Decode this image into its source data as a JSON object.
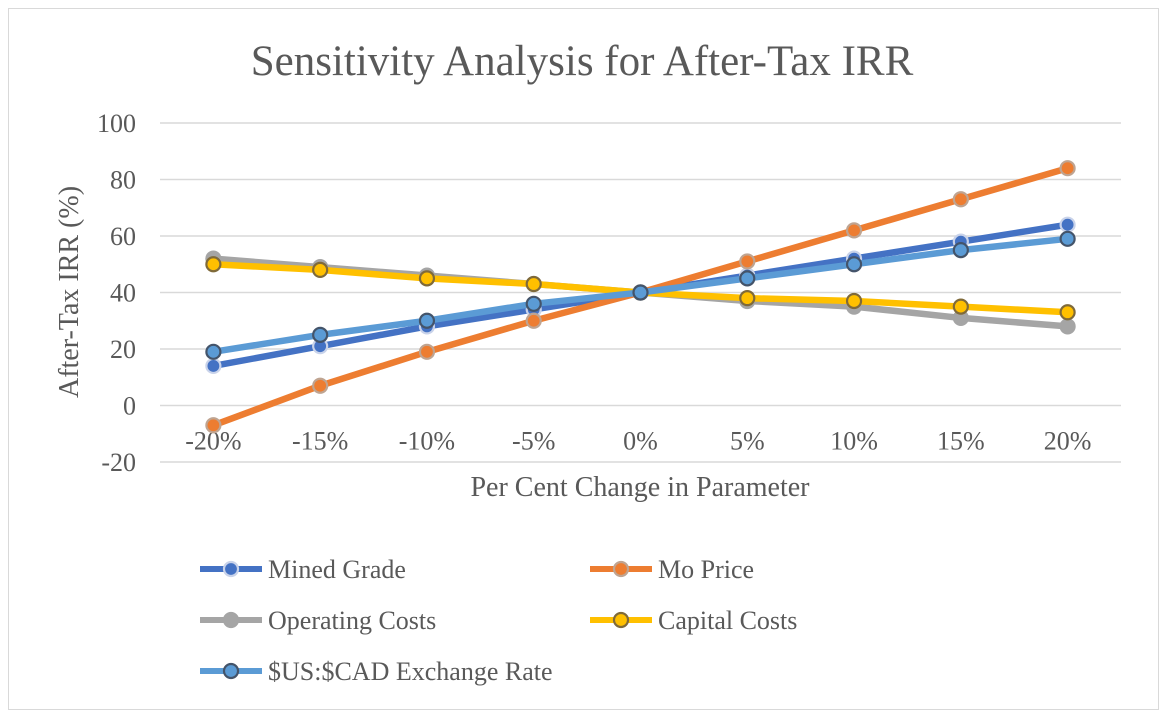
{
  "chart_data": {
    "type": "line",
    "title": "Sensitivity Analysis for After-Tax IRR",
    "xlabel": "Per Cent Change in Parameter",
    "ylabel": "After-Tax IRR (%)",
    "categories": [
      "-20%",
      "-15%",
      "-10%",
      "-5%",
      "0%",
      "5%",
      "10%",
      "15%",
      "20%"
    ],
    "ylim": [
      -20,
      100
    ],
    "yticks": [
      -20,
      0,
      20,
      40,
      60,
      80,
      100
    ],
    "grid": true,
    "legend_position": "bottom",
    "series": [
      {
        "name": "Mined Grade",
        "color": "#4472C4",
        "marker_edge": "#C9D3EA",
        "values": [
          14,
          21,
          28,
          34,
          40,
          46,
          52,
          58,
          64
        ]
      },
      {
        "name": "Mo Price",
        "color": "#ED7D31",
        "marker_edge": "#BFA491",
        "values": [
          -7,
          7,
          19,
          30,
          40,
          51,
          62,
          73,
          84
        ]
      },
      {
        "name": "Operating Costs",
        "color": "#A5A5A5",
        "marker_edge": "#A5A5A5",
        "values": [
          52,
          49,
          46,
          43,
          40,
          37,
          35,
          31,
          28
        ]
      },
      {
        "name": "Capital Costs",
        "color": "#FFC000",
        "marker_edge": "#7F6A3A",
        "values": [
          50,
          48,
          45,
          43,
          40,
          38,
          37,
          35,
          33
        ]
      },
      {
        "name": "$US:$CAD Exchange Rate",
        "color": "#5B9BD5",
        "marker_edge": "#44546A",
        "values": [
          19,
          25,
          30,
          36,
          40,
          45,
          50,
          55,
          59
        ]
      }
    ]
  }
}
